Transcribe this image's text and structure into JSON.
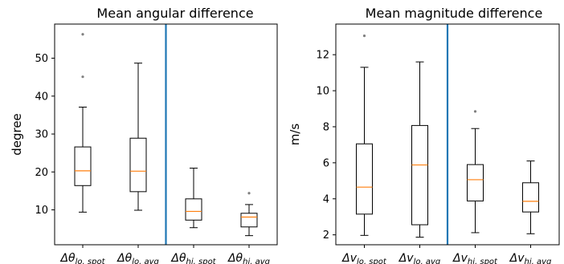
{
  "chart_data": [
    {
      "type": "box",
      "title": "Mean angular difference",
      "xlabel": "",
      "ylabel": "degree",
      "ylim": [
        0.8,
        59
      ],
      "yticks": [
        10,
        20,
        30,
        40,
        50
      ],
      "grid": false,
      "legend": "none",
      "divider_after_category": 2,
      "divider_color": "#1f77b4",
      "median_color": "#ff7f0e",
      "flier_color": "#808080",
      "categories": [
        {
          "symbol": "Δθ",
          "sub": "lo, spot"
        },
        {
          "symbol": "Δθ",
          "sub": "lo, avg"
        },
        {
          "symbol": "Δθ",
          "sub": "hi, spot"
        },
        {
          "symbol": "Δθ",
          "sub": "hi, avg"
        }
      ],
      "boxes": [
        {
          "whisker_low": 9.4,
          "q1": 16.4,
          "median": 20.3,
          "q3": 26.6,
          "whisker_high": 37.1,
          "fliers": [
            45.1,
            56.3
          ]
        },
        {
          "whisker_low": 9.9,
          "q1": 14.8,
          "median": 20.2,
          "q3": 28.9,
          "whisker_high": 48.7,
          "fliers": []
        },
        {
          "whisker_low": 5.3,
          "q1": 7.3,
          "median": 9.6,
          "q3": 12.9,
          "whisker_high": 21.0,
          "fliers": []
        },
        {
          "whisker_low": 3.2,
          "q1": 5.5,
          "median": 8.1,
          "q3": 9.1,
          "whisker_high": 11.4,
          "fliers": [
            14.4
          ]
        }
      ]
    },
    {
      "type": "box",
      "title": "Mean magnitude difference",
      "xlabel": "",
      "ylabel": "m/s",
      "ylim": [
        1.45,
        13.7
      ],
      "yticks": [
        2,
        4,
        6,
        8,
        10,
        12
      ],
      "grid": false,
      "legend": "none",
      "divider_after_category": 2,
      "divider_color": "#1f77b4",
      "median_color": "#ff7f0e",
      "flier_color": "#808080",
      "categories": [
        {
          "symbol": "Δv",
          "sub": "lo, spot"
        },
        {
          "symbol": "Δv",
          "sub": "lo, avg"
        },
        {
          "symbol": "Δv",
          "sub": "hi, spot"
        },
        {
          "symbol": "Δv",
          "sub": "hi, avg"
        }
      ],
      "boxes": [
        {
          "whisker_low": 1.97,
          "q1": 3.15,
          "median": 4.65,
          "q3": 7.05,
          "whisker_high": 11.3,
          "fliers": [
            13.05
          ]
        },
        {
          "whisker_low": 1.87,
          "q1": 2.56,
          "median": 5.88,
          "q3": 8.07,
          "whisker_high": 11.6,
          "fliers": []
        },
        {
          "whisker_low": 2.12,
          "q1": 3.88,
          "median": 5.06,
          "q3": 5.9,
          "whisker_high": 7.9,
          "fliers": [
            8.85
          ]
        },
        {
          "whisker_low": 2.06,
          "q1": 3.27,
          "median": 3.86,
          "q3": 4.89,
          "whisker_high": 6.1,
          "fliers": []
        }
      ]
    }
  ]
}
